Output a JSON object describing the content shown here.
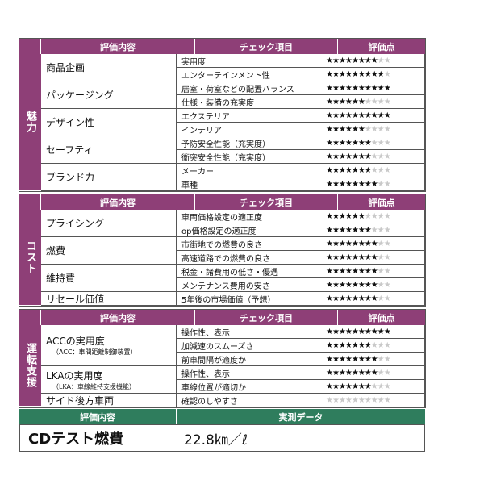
{
  "headers": {
    "item": "評価内容",
    "check": "チェック項目",
    "score": "評価点",
    "data": "実測データ"
  },
  "sections": [
    {
      "id": "appeal",
      "side_label": "魅力",
      "groups": [
        {
          "label": "商品企画",
          "sub": "",
          "checks": [
            {
              "label": "実用度",
              "stars": 8
            },
            {
              "label": "エンターテインメント性",
              "stars": 9
            }
          ]
        },
        {
          "label": "パッケージング",
          "sub": "",
          "checks": [
            {
              "label": "居室・荷室などの配置バランス",
              "stars": 10
            },
            {
              "label": "仕様・装備の充実度",
              "stars": 6
            }
          ]
        },
        {
          "label": "デザイン性",
          "sub": "",
          "checks": [
            {
              "label": "エクステリア",
              "stars": 10
            },
            {
              "label": "インテリア",
              "stars": 6
            }
          ]
        },
        {
          "label": "セーフティ",
          "sub": "",
          "checks": [
            {
              "label": "予防安全性能（充実度）",
              "stars": 7
            },
            {
              "label": "衝突安全性能（充実度）",
              "stars": 7
            }
          ]
        },
        {
          "label": "ブランド力",
          "sub": "",
          "checks": [
            {
              "label": "メーカー",
              "stars": 7
            },
            {
              "label": "車種",
              "stars": 8
            }
          ]
        }
      ]
    },
    {
      "id": "cost",
      "side_label": "コスト",
      "groups": [
        {
          "label": "プライシング",
          "sub": "",
          "checks": [
            {
              "label": "車両価格設定の適正度",
              "stars": 6
            },
            {
              "label": "op価格設定の適正度",
              "stars": 7
            }
          ]
        },
        {
          "label": "燃費",
          "sub": "",
          "checks": [
            {
              "label": "市街地での燃費の良さ",
              "stars": 8
            },
            {
              "label": "高速道路での燃費の良さ",
              "stars": 8
            }
          ]
        },
        {
          "label": "維持費",
          "sub": "",
          "checks": [
            {
              "label": "税金・諸費用の低さ・優遇",
              "stars": 8
            },
            {
              "label": "メンテナンス費用の安さ",
              "stars": 8
            }
          ]
        },
        {
          "label": "リセール価値",
          "sub": "",
          "checks": [
            {
              "label": "5年後の市場価値（予想）",
              "stars": 8
            }
          ]
        }
      ]
    },
    {
      "id": "assist",
      "side_label": "運転支援",
      "groups": [
        {
          "label": "ACCの実用度",
          "sub": "（ACC：車間距離制御装置）",
          "checks": [
            {
              "label": "操作性、表示",
              "stars": 10
            },
            {
              "label": "加減速のスムーズさ",
              "stars": 7
            },
            {
              "label": "前車間隔が適度か",
              "stars": 8
            }
          ]
        },
        {
          "label": "LKAの実用度",
          "sub": "（LKA：車線維持支援機能）",
          "checks": [
            {
              "label": "操作性、表示",
              "stars": 8
            },
            {
              "label": "車線位置が適切か",
              "stars": 7
            }
          ]
        },
        {
          "label": "サイド後方車両",
          "sub": "",
          "checks": [
            {
              "label": "確認のしやすさ",
              "stars": 0
            }
          ]
        }
      ]
    }
  ],
  "star_max": 10,
  "star_char": "★",
  "cd": {
    "label": "CDテスト燃費",
    "value": "22.8㎞／ℓ"
  }
}
